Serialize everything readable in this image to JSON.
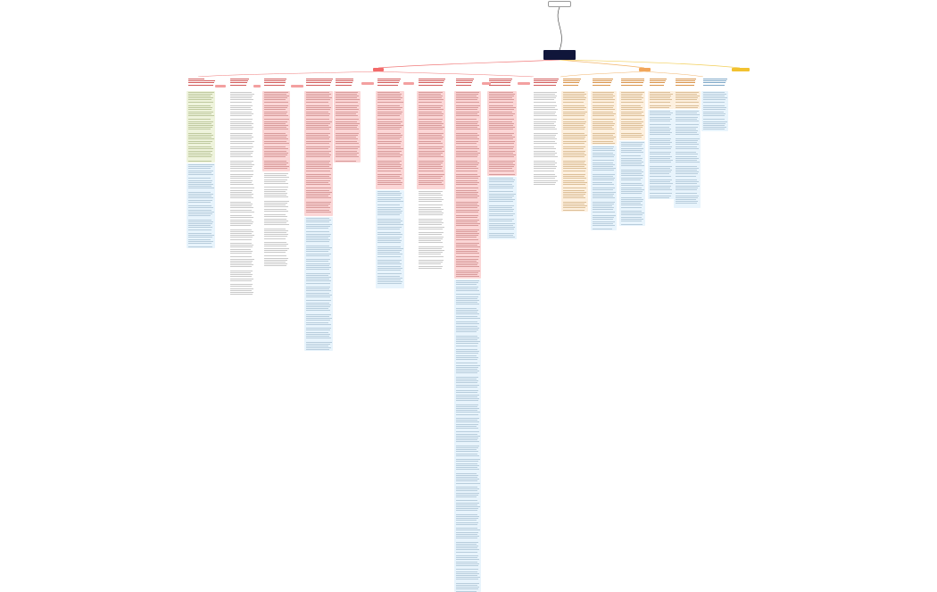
{
  "nodes": {
    "top_note": "",
    "root": "",
    "branch_left": "",
    "branch_center": "",
    "branch_right": ""
  },
  "colors": {
    "root_bg": "#10163a",
    "branch_left": "#f26a6a",
    "branch_center": "#f2a65a",
    "branch_right": "#f2c230",
    "pink_card": "#fbd6d6",
    "blue_card": "#e8f4fc",
    "green_card": "#eef3dc",
    "orange_card": "#fdf0df",
    "link_red": "#f07b7b",
    "link_orange": "#f2b46a",
    "link_yellow": "#f2cf5a"
  }
}
